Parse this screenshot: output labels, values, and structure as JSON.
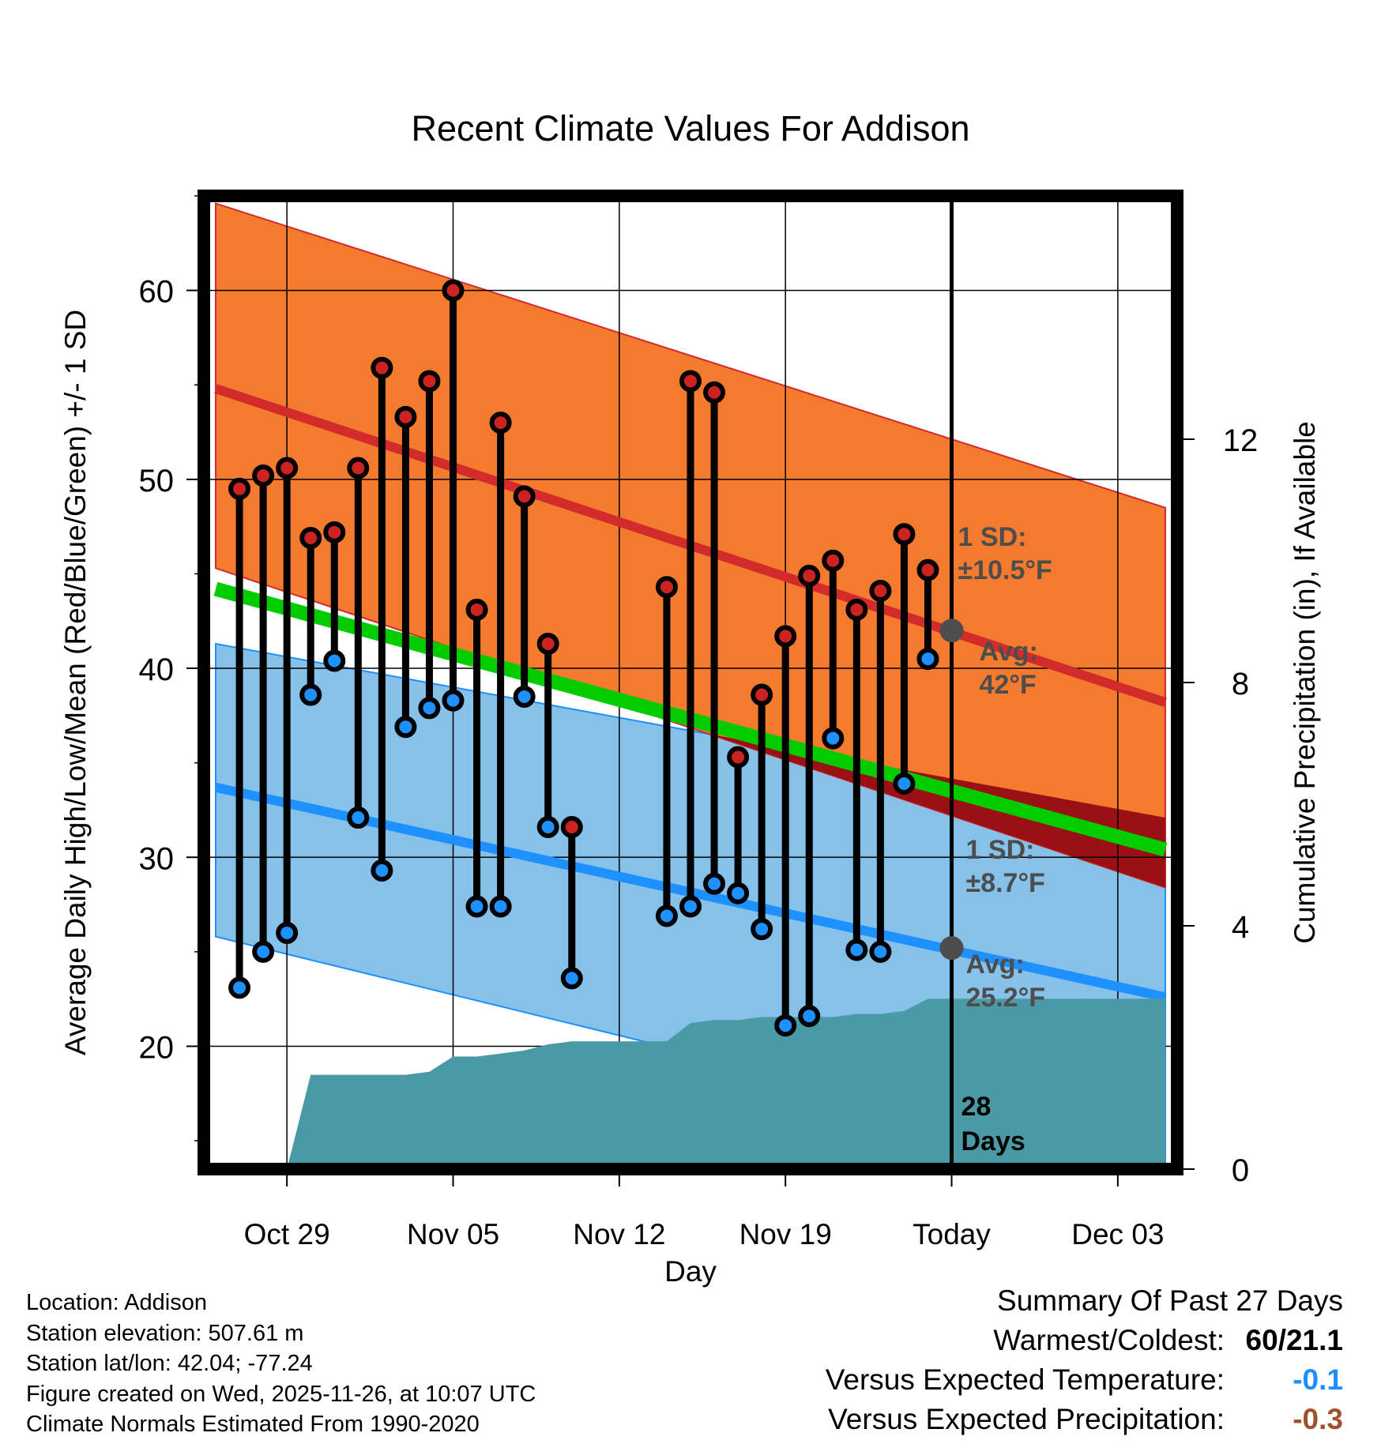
{
  "chart_data": {
    "type": "line",
    "title": "Recent Climate Values For Addison",
    "xlabel": "Day",
    "ylabel": "Average Daily High/Low/Mean (Red/Blue/Green) +/- 1 SD",
    "y2label": "Cumulative Precipitation (in), If Available",
    "ylim": [
      13.5,
      65
    ],
    "y2lim": [
      0,
      16
    ],
    "xlim": [
      -3.5,
      37.5
    ],
    "x_tick_labels": [
      {
        "day": 0,
        "label": "Oct 29"
      },
      {
        "day": 7,
        "label": "Nov 05"
      },
      {
        "day": 14,
        "label": "Nov 12"
      },
      {
        "day": 21,
        "label": "Nov 19"
      },
      {
        "day": 28,
        "label": "Today"
      },
      {
        "day": 35,
        "label": "Dec 03"
      }
    ],
    "y_ticks": [
      20,
      30,
      40,
      50,
      60
    ],
    "y2_ticks": [
      0,
      4,
      8,
      12
    ],
    "today_day": 28,
    "normals": {
      "days": [
        -3,
        37
      ],
      "high_avg": [
        54.8,
        38.2
      ],
      "high_upper": [
        64.6,
        48.5
      ],
      "high_lower": [
        45.3,
        28.4
      ],
      "low_avg": [
        33.7,
        22.6
      ],
      "low_upper": [
        41.3,
        32.1
      ],
      "low_lower": [
        25.8,
        13.5
      ],
      "mean_avg": [
        44.2,
        30.4
      ]
    },
    "series": [
      {
        "name": "High",
        "color": "#cc2222",
        "days": [
          -2,
          -1,
          0,
          1,
          2,
          3,
          4,
          5,
          6,
          7,
          8,
          9,
          10,
          11,
          12,
          16,
          17,
          18,
          19,
          20,
          21,
          22,
          23,
          24,
          25,
          26,
          27
        ],
        "values": [
          49.5,
          50.2,
          50.6,
          46.9,
          47.2,
          50.6,
          55.9,
          53.3,
          55.2,
          60,
          43.1,
          53,
          49.1,
          41.3,
          31.6,
          44.3,
          55.2,
          54.6,
          35.3,
          38.6,
          41.7,
          44.9,
          45.7,
          43.1,
          44.1,
          47.1,
          45.2
        ]
      },
      {
        "name": "Low",
        "color": "#1e90ff",
        "days": [
          -2,
          -1,
          0,
          1,
          2,
          3,
          4,
          5,
          6,
          7,
          8,
          9,
          10,
          11,
          12,
          16,
          17,
          18,
          19,
          20,
          21,
          22,
          23,
          24,
          25,
          26,
          27
        ],
        "values": [
          23.1,
          25,
          26,
          38.6,
          40.4,
          32.1,
          29.3,
          36.9,
          37.9,
          38.3,
          27.4,
          27.4,
          38.5,
          31.6,
          23.6,
          26.9,
          27.4,
          28.6,
          28.1,
          26.2,
          21.1,
          21.6,
          36.3,
          25.1,
          25,
          33.9,
          40.5
        ]
      }
    ],
    "precipitation": {
      "days": [
        -3,
        0,
        1,
        5,
        6,
        7,
        8,
        9,
        10,
        11,
        12,
        13,
        14,
        15,
        16,
        17,
        18,
        19,
        20,
        21,
        22,
        23,
        24,
        25,
        26,
        27,
        28,
        37
      ],
      "values": [
        0,
        0,
        1.55,
        1.55,
        1.6,
        1.85,
        1.85,
        1.9,
        1.95,
        2.05,
        2.1,
        2.1,
        2.1,
        2.1,
        2.1,
        2.4,
        2.45,
        2.45,
        2.5,
        2.5,
        2.5,
        2.5,
        2.55,
        2.55,
        2.6,
        2.8,
        2.8,
        2.8
      ],
      "days_label": "28\nDays"
    },
    "annotations": {
      "high_sd": "1 SD:\n±10.5°F",
      "high_avg": "Avg:\n42°F",
      "low_sd": "1 SD:\n±8.7°F",
      "low_avg": "Avg:\n25.2°F",
      "high_avg_value": 42,
      "low_avg_value": 25.2
    }
  },
  "info": {
    "location": "Location: Addison",
    "elevation": "Station elevation: 507.61 m",
    "latlon": "Station lat/lon: 42.04; -77.24",
    "created": "Figure created on Wed, 2025-11-26, at 10:07 UTC",
    "normals": "Climate Normals Estimated From 1990-2020"
  },
  "summary": {
    "title": "Summary Of Past 27 Days",
    "warmest_coldest_label": "Warmest/Coldest:",
    "warmest_coldest_value": "60/21.1",
    "temp_label": "Versus Expected Temperature:",
    "temp_value": "-0.1",
    "precip_label": "Versus Expected Precipitation:",
    "precip_value": "-0.3",
    "temp_color": "#1e90ff",
    "precip_color": "#a0522d"
  }
}
